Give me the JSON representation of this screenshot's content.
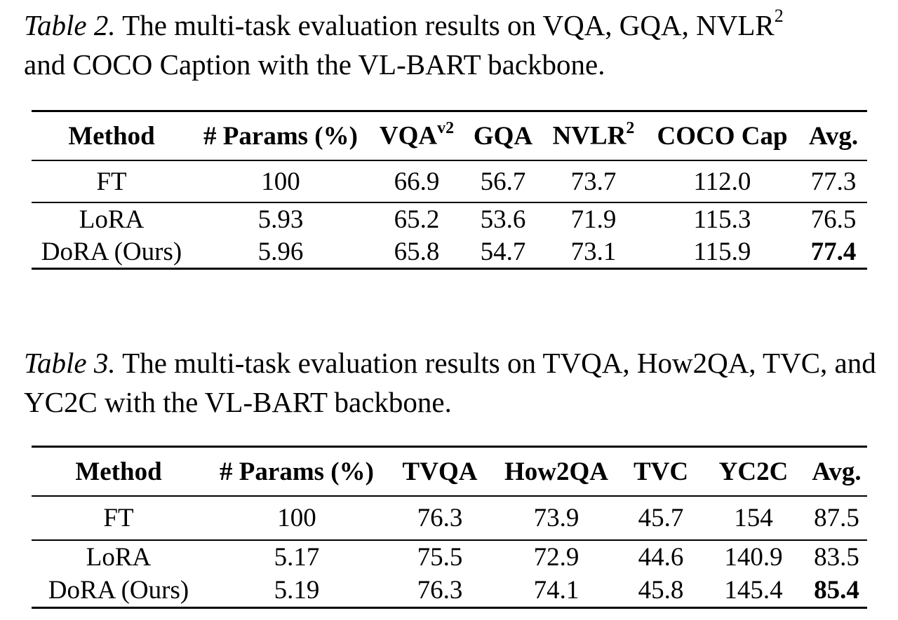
{
  "table2": {
    "label": "Table 2.",
    "caption_text": " The multi-task evaluation results on VQA, GQA, NVLR",
    "caption_sup": "2",
    "caption_text2": "and COCO Caption with the VL-BART backbone.",
    "headers": {
      "method": "Method",
      "params": "# Params (%)",
      "vqa": "VQA",
      "vqa_sup": "v2",
      "gqa": "GQA",
      "nvlr": "NVLR",
      "nvlr_sup": "2",
      "coco": "COCO Cap",
      "avg": "Avg."
    },
    "rows": [
      {
        "method": "FT",
        "params": "100",
        "vqa": "66.9",
        "gqa": "56.7",
        "nvlr": "73.7",
        "coco": "112.0",
        "avg": "77.3"
      },
      {
        "method": "LoRA",
        "params": "5.93",
        "vqa": "65.2",
        "gqa": "53.6",
        "nvlr": "71.9",
        "coco": "115.3",
        "avg": "76.5"
      },
      {
        "method": "DoRA (Ours)",
        "params": "5.96",
        "vqa": "65.8",
        "gqa": "54.7",
        "nvlr": "73.1",
        "coco": "115.9",
        "avg": "77.4"
      }
    ]
  },
  "table3": {
    "label": "Table 3.",
    "caption_text": " The multi-task evaluation results on TVQA, How2QA, TVC, and YC2C with the VL-BART backbone.",
    "headers": {
      "method": "Method",
      "params": "# Params (%)",
      "tvqa": "TVQA",
      "how2qa": "How2QA",
      "tvc": "TVC",
      "yc2c": "YC2C",
      "avg": "Avg."
    },
    "rows": [
      {
        "method": "FT",
        "params": "100",
        "tvqa": "76.3",
        "how2qa": "73.9",
        "tvc": "45.7",
        "yc2c": "154",
        "avg": "87.5"
      },
      {
        "method": "LoRA",
        "params": "5.17",
        "tvqa": "75.5",
        "how2qa": "72.9",
        "tvc": "44.6",
        "yc2c": "140.9",
        "avg": "83.5"
      },
      {
        "method": "DoRA (Ours)",
        "params": "5.19",
        "tvqa": "76.3",
        "how2qa": "74.1",
        "tvc": "45.8",
        "yc2c": "145.4",
        "avg": "85.4"
      }
    ]
  }
}
